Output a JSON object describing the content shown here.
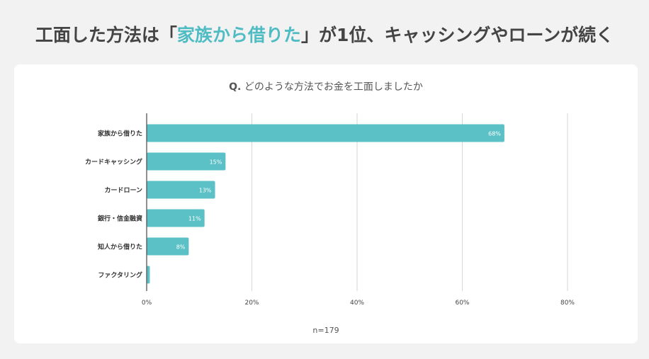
{
  "headline": {
    "pre": "工面した方法は「",
    "highlight": "家族から借りた",
    "post": "」が1位、キャッシングやローンが続く"
  },
  "question": {
    "prefix": "Q.",
    "text": " どのような方法でお金を工面しましたか"
  },
  "footnote": "n=179",
  "colors": {
    "bar": "#5bc1c6",
    "highlight": "#4fbcc3",
    "grid": "#d6d6d6",
    "axis": "#555555"
  },
  "chart_data": {
    "type": "bar",
    "orientation": "horizontal",
    "categories": [
      "家族から借りた",
      "カードキャッシング",
      "カードローン",
      "銀行・信金融資",
      "知人から借りた",
      "ファクタリング"
    ],
    "values": [
      68,
      15,
      13,
      11,
      8,
      0.6
    ],
    "data_labels": [
      "68%",
      "15%",
      "13%",
      "11%",
      "8%",
      ""
    ],
    "xlim": [
      0,
      80
    ],
    "xticks": [
      "0%",
      "20%",
      "40%",
      "60%",
      "80%"
    ],
    "grid": true
  }
}
